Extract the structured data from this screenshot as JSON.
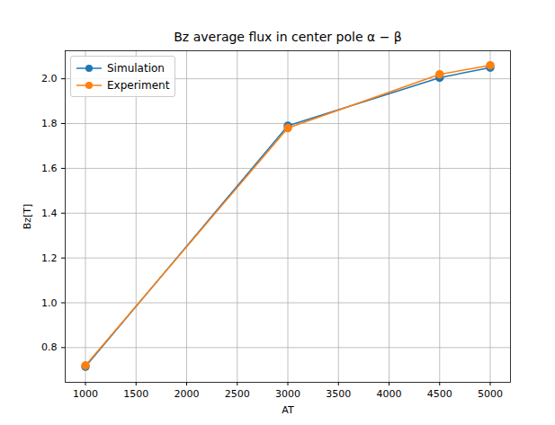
{
  "chart_data": {
    "type": "line",
    "title": "Bz average flux in center pole α − β",
    "x_label": "AT",
    "y_label": "Bz[T]",
    "x": [
      1000,
      3000,
      4500,
      5000
    ],
    "series": [
      {
        "name": "Simulation",
        "color": "#1f77b4",
        "marker": "o",
        "line_style": "solid",
        "values": [
          0.715,
          1.79,
          2.005,
          2.05
        ]
      },
      {
        "name": "Experiment",
        "color": "#ff7f0e",
        "marker": "o",
        "line_style": "solid",
        "values": [
          0.72,
          1.78,
          2.02,
          2.06
        ]
      }
    ],
    "xlim": [
      800,
      5200
    ],
    "xticks": [
      1000,
      1500,
      2000,
      2500,
      3000,
      3500,
      4000,
      4500,
      5000
    ],
    "ylim": [
      0.645,
      2.125
    ],
    "yticks": [
      0.8,
      {
        "value": 1,
        "label": "1.0"
      },
      1.2,
      1.4,
      1.6,
      1.8,
      {
        "value": 2,
        "label": "2.0"
      }
    ],
    "grid": true,
    "legend": "upper left"
  }
}
